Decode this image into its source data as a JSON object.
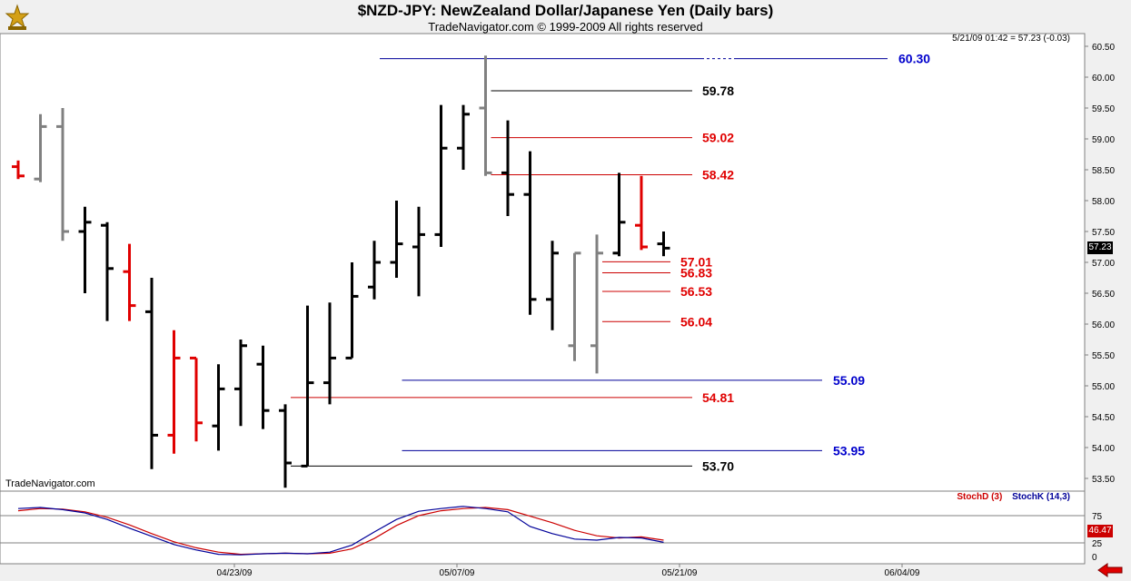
{
  "header": {
    "title": "$NZD-JPY:  NewZealand Dollar/Japanese Yen  (Daily bars)",
    "subtitle": "TradeNavigator.com © 1999-2009 All rights reserved",
    "quote": "5/21/09 01:42 = 57.23 (-0.03)"
  },
  "watermark": "TradeNavigator.com",
  "last_price_label": "57.23",
  "last_stoch_label": "46.47",
  "stoch_legend": {
    "d": "StochD (3)",
    "k": "StochK (14,3)"
  },
  "colors": {
    "black": "#000000",
    "gray": "#808080",
    "red": "#e00000",
    "blue": "#0000cc",
    "blueLine": "#000099",
    "redLine": "#cc0000"
  },
  "chart_data": {
    "type": "ohlc",
    "ylim": [
      53.3,
      60.6
    ],
    "y_ticks": [
      "53.50",
      "54.00",
      "54.50",
      "55.00",
      "55.50",
      "56.00",
      "56.50",
      "57.00",
      "57.50",
      "58.00",
      "58.50",
      "59.00",
      "59.50",
      "60.00",
      "60.50"
    ],
    "x_tick_labels": [
      {
        "label": "04/23/09",
        "bar": 10
      },
      {
        "label": "05/07/09",
        "bar": 20
      },
      {
        "label": "05/21/09",
        "bar": 30
      },
      {
        "label": "06/04/09",
        "bar": 40
      }
    ],
    "bars": [
      {
        "date": "04/09/09",
        "o": 58.55,
        "h": 58.65,
        "l": 58.35,
        "c": 58.4,
        "color": "red"
      },
      {
        "date": "04/10/09",
        "o": 58.35,
        "h": 59.4,
        "l": 58.3,
        "c": 59.2,
        "color": "gray"
      },
      {
        "date": "04/13/09",
        "o": 59.2,
        "h": 59.5,
        "l": 57.35,
        "c": 57.5,
        "color": "gray"
      },
      {
        "date": "04/14/09",
        "o": 57.5,
        "h": 57.9,
        "l": 56.5,
        "c": 57.65,
        "color": "black"
      },
      {
        "date": "04/15/09",
        "o": 57.6,
        "h": 57.65,
        "l": 56.05,
        "c": 56.9,
        "color": "black"
      },
      {
        "date": "04/16/09",
        "o": 56.85,
        "h": 57.3,
        "l": 56.05,
        "c": 56.3,
        "color": "red"
      },
      {
        "date": "04/17/09",
        "o": 56.2,
        "h": 56.75,
        "l": 53.65,
        "c": 54.2,
        "color": "black"
      },
      {
        "date": "04/20/09",
        "o": 54.2,
        "h": 55.9,
        "l": 53.9,
        "c": 55.45,
        "color": "red"
      },
      {
        "date": "04/21/09",
        "o": 55.45,
        "h": 55.45,
        "l": 54.1,
        "c": 54.4,
        "color": "red"
      },
      {
        "date": "04/22/09",
        "o": 54.35,
        "h": 55.35,
        "l": 53.95,
        "c": 54.95,
        "color": "black"
      },
      {
        "date": "04/23/09",
        "o": 54.95,
        "h": 55.75,
        "l": 54.35,
        "c": 55.65,
        "color": "black"
      },
      {
        "date": "04/24/09",
        "o": 55.35,
        "h": 55.65,
        "l": 54.3,
        "c": 54.6,
        "color": "black"
      },
      {
        "date": "04/27/09",
        "o": 54.6,
        "h": 54.7,
        "l": 53.35,
        "c": 53.75,
        "color": "black"
      },
      {
        "date": "04/28/09",
        "o": 53.7,
        "h": 56.3,
        "l": 53.7,
        "c": 55.05,
        "color": "black"
      },
      {
        "date": "04/29/09",
        "o": 55.05,
        "h": 56.35,
        "l": 54.7,
        "c": 55.45,
        "color": "black"
      },
      {
        "date": "04/30/09",
        "o": 55.45,
        "h": 57.0,
        "l": 55.45,
        "c": 56.45,
        "color": "black"
      },
      {
        "date": "05/01/09",
        "o": 56.6,
        "h": 57.35,
        "l": 56.4,
        "c": 57.0,
        "color": "black"
      },
      {
        "date": "05/04/09",
        "o": 57.0,
        "h": 58.0,
        "l": 56.75,
        "c": 57.3,
        "color": "black"
      },
      {
        "date": "05/05/09",
        "o": 57.25,
        "h": 57.9,
        "l": 56.45,
        "c": 57.45,
        "color": "black"
      },
      {
        "date": "05/06/09",
        "o": 57.45,
        "h": 59.55,
        "l": 57.25,
        "c": 58.85,
        "color": "black"
      },
      {
        "date": "05/07/09",
        "o": 58.85,
        "h": 59.55,
        "l": 58.5,
        "c": 59.4,
        "color": "black"
      },
      {
        "date": "05/08/09",
        "o": 59.5,
        "h": 60.35,
        "l": 58.4,
        "c": 58.45,
        "color": "gray"
      },
      {
        "date": "05/11/09",
        "o": 58.45,
        "h": 59.3,
        "l": 57.75,
        "c": 58.1,
        "color": "black"
      },
      {
        "date": "05/12/09",
        "o": 58.1,
        "h": 58.8,
        "l": 56.15,
        "c": 56.4,
        "color": "black"
      },
      {
        "date": "05/13/09",
        "o": 56.4,
        "h": 57.35,
        "l": 55.9,
        "c": 57.15,
        "color": "black"
      },
      {
        "date": "05/14/09",
        "o": 55.65,
        "h": 57.15,
        "l": 55.4,
        "c": 57.15,
        "color": "gray"
      },
      {
        "date": "05/15/09",
        "o": 55.65,
        "h": 57.45,
        "l": 55.2,
        "c": 57.15,
        "color": "gray"
      },
      {
        "date": "05/18/09",
        "o": 57.15,
        "h": 58.45,
        "l": 57.1,
        "c": 57.65,
        "color": "black"
      },
      {
        "date": "05/19/09",
        "o": 57.6,
        "h": 58.4,
        "l": 57.2,
        "c": 57.25,
        "color": "red"
      },
      {
        "date": "05/20/09",
        "o": 57.3,
        "h": 57.5,
        "l": 57.1,
        "c": 57.23,
        "color": "black"
      }
    ],
    "levels": [
      {
        "label": "60.30",
        "value": 60.3,
        "start_bar": 16,
        "color": "blue",
        "dash_tail": true
      },
      {
        "label": "59.78",
        "value": 59.78,
        "start_bar": 21,
        "color": "black"
      },
      {
        "label": "59.02",
        "value": 59.02,
        "start_bar": 21,
        "color": "red"
      },
      {
        "label": "58.42",
        "value": 58.42,
        "start_bar": 21,
        "color": "red"
      },
      {
        "label": "57.01",
        "value": 57.01,
        "start_bar": 26,
        "color": "red"
      },
      {
        "label": "56.83",
        "value": 56.83,
        "start_bar": 26,
        "color": "red"
      },
      {
        "label": "56.53",
        "value": 56.53,
        "start_bar": 26,
        "color": "red"
      },
      {
        "label": "56.04",
        "value": 56.04,
        "start_bar": 26,
        "color": "red"
      },
      {
        "label": "55.09",
        "value": 55.09,
        "start_bar": 17,
        "color": "blue"
      },
      {
        "label": "54.81",
        "value": 54.81,
        "start_bar": 12,
        "color": "red"
      },
      {
        "label": "53.95",
        "value": 53.95,
        "start_bar": 17,
        "color": "blue"
      },
      {
        "label": "53.70",
        "value": 53.7,
        "start_bar": 12,
        "color": "black"
      }
    ],
    "stochastic": {
      "ylim": [
        0,
        100
      ],
      "ticks": [
        "0",
        "25",
        "75"
      ],
      "stoch_k": [
        88,
        90,
        86,
        80,
        68,
        52,
        37,
        22,
        12,
        4,
        3,
        5,
        6,
        5,
        8,
        21,
        45,
        68,
        83,
        88,
        92,
        88,
        82,
        55,
        42,
        32,
        30,
        35,
        34,
        26
      ],
      "stoch_d": [
        84,
        88,
        87,
        82,
        72,
        58,
        42,
        27,
        16,
        8,
        4,
        5,
        6,
        5,
        6,
        14,
        33,
        57,
        75,
        84,
        88,
        90,
        86,
        74,
        62,
        48,
        38,
        34,
        36,
        30
      ]
    }
  }
}
